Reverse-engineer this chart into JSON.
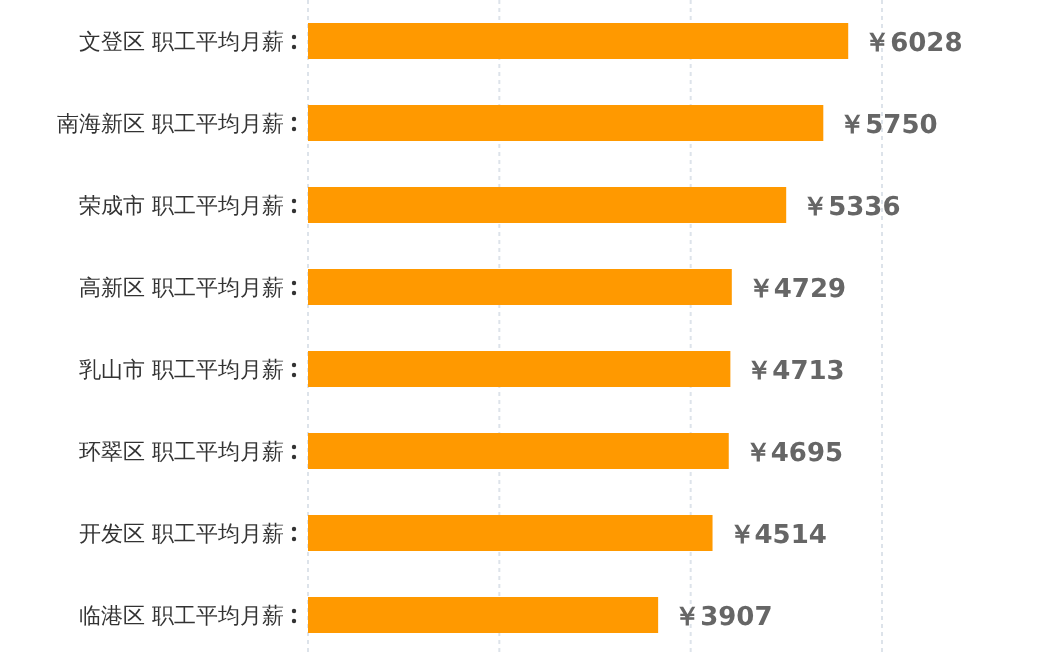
{
  "chart_data": {
    "type": "bar",
    "orientation": "horizontal",
    "categories": [
      "文登区 职工平均月薪",
      "南海新区 职工平均月薪",
      "荣成市 职工平均月薪",
      "高新区 职工平均月薪",
      "乳山市 职工平均月薪",
      "环翠区 职工平均月薪",
      "开发区 职工平均月薪",
      "临港区 职工平均月薪"
    ],
    "values": [
      6028,
      5750,
      5336,
      4729,
      4713,
      4695,
      4514,
      3907
    ],
    "value_labels": [
      "￥6028",
      "￥5750",
      "￥5336",
      "￥4729",
      "￥4713",
      "￥4695",
      "￥4514",
      "￥3907"
    ],
    "color": "#ff9900",
    "xlim": [
      0,
      6405
    ],
    "xticks": [
      {
        "value": 0,
        "label": null
      },
      {
        "value": 2135,
        "label": null
      },
      {
        "value": 4270,
        "label": null
      },
      {
        "value": 6405,
        "label": null
      }
    ],
    "grid": "x",
    "tick_labels": "y"
  }
}
